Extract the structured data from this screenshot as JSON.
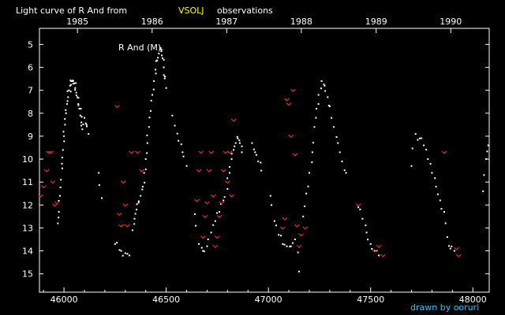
{
  "colors": {
    "background": "#000000",
    "axis": "#ffffff",
    "obs_visual": "#ffffff",
    "obs_limit": "#e03020",
    "accent": "#ffff00",
    "credit": "#20c8ff"
  },
  "header": {
    "title_prefix": "Light curve of R And from",
    "source": "VSOLJ",
    "title_suffix": "observations"
  },
  "star_label": "R And (M)",
  "credit": "drawn by ooruri",
  "chart_data": {
    "type": "scatter",
    "title": "Light curve of R And from VSOLJ observations",
    "xlabel": "",
    "ylabel": "",
    "xlim": [
      45880,
      48080
    ],
    "ylim": [
      15.8,
      4.3
    ],
    "y_inverted": true,
    "x_ticks": [
      46000,
      46500,
      47000,
      47500,
      48000
    ],
    "x_tick_labels": [
      "46000",
      "46500",
      "47000",
      "47500",
      "48000"
    ],
    "y_ticks": [
      5,
      6,
      7,
      8,
      9,
      10,
      11,
      12,
      13,
      14,
      15
    ],
    "y_tick_labels": [
      "5",
      "6",
      "7",
      "8",
      "9",
      "10",
      "11",
      "12",
      "13",
      "14",
      "15"
    ],
    "year_ticks": [
      46066,
      46431,
      46796,
      47161,
      47527,
      47892
    ],
    "year_labels": [
      "1985",
      "1986",
      "1987",
      "1988",
      "1989",
      "1990"
    ],
    "series": [
      {
        "marker": "dot",
        "segments": [
          [
            [
              45970,
              12.8
            ],
            [
              45975,
              12.3
            ],
            [
              45980,
              11.6
            ],
            [
              45985,
              10.9
            ],
            [
              45990,
              10.2
            ],
            [
              45995,
              9.6
            ],
            [
              46000,
              9.0
            ],
            [
              46005,
              8.5
            ],
            [
              46010,
              8.0
            ],
            [
              46015,
              7.6
            ],
            [
              46020,
              7.3
            ],
            [
              46025,
              7.0
            ],
            [
              46030,
              6.8
            ],
            [
              46035,
              6.6
            ],
            [
              46040,
              6.6
            ],
            [
              46045,
              6.6
            ],
            [
              46050,
              6.7
            ],
            [
              46055,
              6.9
            ],
            [
              46060,
              7.1
            ],
            [
              46065,
              7.3
            ],
            [
              46070,
              7.6
            ],
            [
              46075,
              7.8
            ],
            [
              46080,
              8.1
            ],
            [
              46085,
              8.4
            ],
            [
              46090,
              8.7
            ],
            [
              46100,
              8.2
            ],
            [
              46110,
              8.5
            ],
            [
              46120,
              8.9
            ]
          ],
          [
            [
              46170,
              10.6
            ],
            [
              46185,
              11.7
            ]
          ],
          [
            [
              46250,
              13.7
            ],
            [
              46280,
              14.0
            ],
            [
              46300,
              14.1
            ],
            [
              46320,
              14.2
            ]
          ],
          [
            [
              46335,
              13.1
            ],
            [
              46345,
              12.6
            ],
            [
              46355,
              12.2
            ],
            [
              46365,
              11.9
            ],
            [
              46375,
              11.6
            ],
            [
              46385,
              11.2
            ],
            [
              46392,
              10.6
            ],
            [
              46400,
              10.0
            ],
            [
              46408,
              9.3
            ],
            [
              46416,
              8.6
            ],
            [
              46424,
              7.9
            ],
            [
              46432,
              7.2
            ],
            [
              46440,
              6.6
            ],
            [
              46448,
              6.1
            ],
            [
              46456,
              5.7
            ],
            [
              46464,
              5.4
            ],
            [
              46470,
              5.2
            ],
            [
              46476,
              5.3
            ],
            [
              46482,
              5.6
            ],
            [
              46488,
              6.0
            ],
            [
              46494,
              6.4
            ],
            [
              46500,
              6.9
            ]
          ],
          [
            [
              46530,
              8.1
            ],
            [
              46560,
              9.2
            ],
            [
              46580,
              9.7
            ],
            [
              46600,
              10.3
            ]
          ],
          [
            [
              46640,
              12.4
            ],
            [
              46660,
              13.7
            ],
            [
              46680,
              14.0
            ],
            [
              46700,
              13.8
            ],
            [
              46720,
              13.2
            ],
            [
              46740,
              12.7
            ],
            [
              46760,
              12.3
            ],
            [
              46780,
              11.8
            ],
            [
              46800,
              11.3
            ],
            [
              46810,
              10.6
            ],
            [
              46820,
              10.0
            ],
            [
              46830,
              9.6
            ],
            [
              46840,
              9.3
            ],
            [
              46850,
              9.1
            ],
            [
              46860,
              9.3
            ],
            [
              46870,
              9.7
            ]
          ],
          [
            [
              46920,
              9.3
            ],
            [
              46935,
              9.7
            ],
            [
              46950,
              10.1
            ],
            [
              46965,
              10.5
            ]
          ],
          [
            [
              47010,
              11.6
            ],
            [
              47030,
              12.7
            ],
            [
              47050,
              13.3
            ],
            [
              47070,
              13.7
            ],
            [
              47090,
              13.8
            ],
            [
              47110,
              13.8
            ],
            [
              47130,
              13.5
            ],
            [
              47150,
              14.9
            ]
          ],
          [
            [
              47170,
              12.5
            ],
            [
              47185,
              11.5
            ],
            [
              47200,
              10.6
            ],
            [
              47215,
              9.7
            ],
            [
              47225,
              8.6
            ],
            [
              47235,
              7.8
            ],
            [
              47245,
              7.2
            ],
            [
              47260,
              6.6
            ],
            [
              47275,
              6.8
            ],
            [
              47290,
              7.3
            ],
            [
              47300,
              7.7
            ],
            [
              47320,
              8.6
            ],
            [
              47340,
              9.3
            ],
            [
              47360,
              10.1
            ],
            [
              47380,
              10.6
            ]
          ],
          [
            [
              47440,
              12.1
            ],
            [
              47460,
              12.6
            ],
            [
              47480,
              13.2
            ],
            [
              47500,
              13.7
            ],
            [
              47520,
              14.0
            ],
            [
              47540,
              14.2
            ]
          ],
          [
            [
              47700,
              10.3
            ],
            [
              47720,
              8.9
            ],
            [
              47740,
              9.1
            ],
            [
              47760,
              9.4
            ],
            [
              47780,
              10.0
            ],
            [
              47800,
              10.6
            ],
            [
              47820,
              11.2
            ],
            [
              47840,
              11.8
            ],
            [
              47860,
              12.3
            ],
            [
              47875,
              13.4
            ],
            [
              47890,
              13.9
            ],
            [
              47910,
              14.0
            ]
          ],
          [
            [
              48050,
              11.4
            ],
            [
              48065,
              10.0
            ],
            [
              48075,
              9.4
            ]
          ]
        ]
      },
      {
        "marker": "caret",
        "points": [
          [
            45885,
            11.6
          ],
          [
            45900,
            11.2
          ],
          [
            45915,
            10.5
          ],
          [
            45925,
            9.7
          ],
          [
            45935,
            9.7
          ],
          [
            45945,
            11.0
          ],
          [
            45955,
            12.0
          ],
          [
            45965,
            11.9
          ],
          [
            46260,
            7.7
          ],
          [
            46270,
            12.4
          ],
          [
            46280,
            12.9
          ],
          [
            46290,
            11.0
          ],
          [
            46300,
            12.0
          ],
          [
            46310,
            12.9
          ],
          [
            46330,
            9.7
          ],
          [
            46360,
            9.7
          ],
          [
            46380,
            10.5
          ],
          [
            46650,
            11.8
          ],
          [
            46660,
            10.5
          ],
          [
            46670,
            9.7
          ],
          [
            46680,
            13.4
          ],
          [
            46690,
            12.5
          ],
          [
            46700,
            11.9
          ],
          [
            46710,
            10.5
          ],
          [
            46720,
            9.7
          ],
          [
            46730,
            11.6
          ],
          [
            46740,
            13.8
          ],
          [
            46750,
            13.4
          ],
          [
            46760,
            12.5
          ],
          [
            46770,
            11.9
          ],
          [
            46780,
            10.5
          ],
          [
            46790,
            9.7
          ],
          [
            46800,
            11.0
          ],
          [
            46810,
            9.7
          ],
          [
            46820,
            11.6
          ],
          [
            46830,
            8.3
          ],
          [
            47070,
            13.0
          ],
          [
            47080,
            12.6
          ],
          [
            47090,
            7.4
          ],
          [
            47100,
            7.6
          ],
          [
            47110,
            9.0
          ],
          [
            47120,
            7.0
          ],
          [
            47130,
            9.8
          ],
          [
            47140,
            12.9
          ],
          [
            47150,
            13.8
          ],
          [
            47160,
            13.3
          ],
          [
            47180,
            13.0
          ],
          [
            47440,
            12.0
          ],
          [
            47520,
            14.0
          ],
          [
            47540,
            13.8
          ],
          [
            47560,
            14.2
          ],
          [
            47860,
            9.7
          ],
          [
            47920,
            13.9
          ],
          [
            47930,
            14.2
          ]
        ]
      }
    ]
  }
}
